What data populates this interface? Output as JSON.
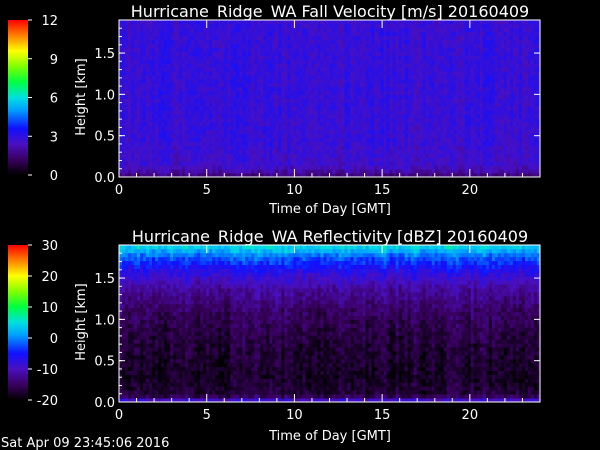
{
  "chart_data": [
    {
      "type": "heatmap",
      "title": "Hurricane_Ridge_WA Fall Velocity [m/s] 20160409",
      "xlabel": "Time of Day [GMT]",
      "ylabel": "Height [km]",
      "xlim": [
        0,
        24
      ],
      "ylim": [
        0,
        1.9
      ],
      "xticks": [
        "0",
        "5",
        "10",
        "15",
        "20"
      ],
      "xtick_values": [
        0,
        5,
        10,
        15,
        20
      ],
      "yticks": [
        "0.0",
        "0.5",
        "1.0",
        "1.5"
      ],
      "ytick_values": [
        0,
        0.5,
        1.0,
        1.5
      ],
      "colorbar": {
        "min": 0,
        "max": 12,
        "ticks": [
          "0",
          "3",
          "6",
          "9",
          "12"
        ],
        "tick_values": [
          0,
          3,
          6,
          9,
          12
        ]
      },
      "field_profile": {
        "heights": [
          0,
          0.05,
          0.15,
          0.5,
          1.0,
          1.5,
          1.85
        ],
        "values": [
          1.2,
          2.0,
          2.6,
          2.8,
          2.85,
          2.85,
          2.8
        ]
      },
      "noise": 0.7
    },
    {
      "type": "heatmap",
      "title": "Hurricane_Ridge_WA Reflectivity [dBZ] 20160409",
      "xlabel": "Time of Day [GMT]",
      "ylabel": "Height [km]",
      "xlim": [
        0,
        24
      ],
      "ylim": [
        0,
        1.9
      ],
      "xticks": [
        "0",
        "5",
        "10",
        "15",
        "20"
      ],
      "xtick_values": [
        0,
        5,
        10,
        15,
        20
      ],
      "yticks": [
        "0.0",
        "0.5",
        "1.0",
        "1.5"
      ],
      "ytick_values": [
        0,
        0.5,
        1.0,
        1.5
      ],
      "colorbar": {
        "min": -20,
        "max": 30,
        "ticks": [
          "-20",
          "-10",
          "0",
          "10",
          "20",
          "30"
        ],
        "tick_values": [
          -20,
          -10,
          0,
          10,
          20,
          30
        ]
      },
      "field_profile": {
        "heights": [
          0,
          0.03,
          0.08,
          0.3,
          0.7,
          1.1,
          1.35,
          1.55,
          1.75,
          1.85,
          1.9
        ],
        "values": [
          -14,
          -8,
          -17,
          -18,
          -17,
          -15,
          -12,
          -8,
          -2,
          3,
          5
        ]
      },
      "noise": 3.5
    }
  ],
  "timestamp": "Sat Apr 09 23:45:06 2016"
}
